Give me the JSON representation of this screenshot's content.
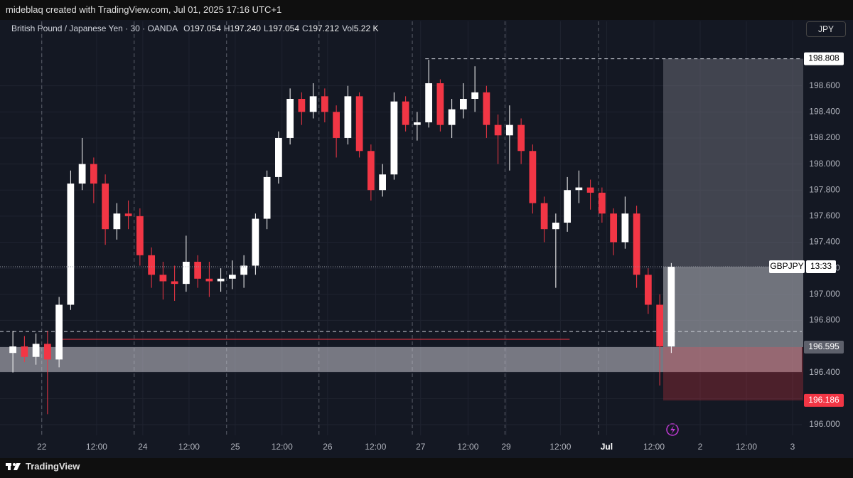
{
  "header": "mideblaq created with TradingView.com, Jul 01, 2025 17:16 UTC+1",
  "footer": "TradingView",
  "chart_data": {
    "type": "candlestick",
    "title": "British Pound / Japanese Yen · 30 · OANDA",
    "ohlc": [
      {
        "label": "O",
        "value": "197.054"
      },
      {
        "label": "H",
        "value": "197.240"
      },
      {
        "label": "L",
        "value": "197.054"
      },
      {
        "label": "C",
        "value": "197.212"
      },
      {
        "label": "Vol",
        "value": "5.22 K"
      }
    ],
    "currency": "JPY",
    "symbol_label": "GBPJPY",
    "countdown": "13:33",
    "up_color": "#ffffff",
    "down_color": "#f23645",
    "candles": [
      [
        196.55,
        196.72,
        196.4,
        196.6
      ],
      [
        196.6,
        196.68,
        196.48,
        196.52
      ],
      [
        196.52,
        196.7,
        196.46,
        196.62
      ],
      [
        196.62,
        196.72,
        196.08,
        196.5
      ],
      [
        196.5,
        196.98,
        196.44,
        196.92
      ],
      [
        196.92,
        197.95,
        196.88,
        197.85
      ],
      [
        197.85,
        198.2,
        197.8,
        198.0
      ],
      [
        198.0,
        198.05,
        197.7,
        197.85
      ],
      [
        197.85,
        197.92,
        197.38,
        197.5
      ],
      [
        197.5,
        197.7,
        197.42,
        197.62
      ],
      [
        197.62,
        197.72,
        197.5,
        197.6
      ],
      [
        197.6,
        197.66,
        197.22,
        197.3
      ],
      [
        197.3,
        197.36,
        197.05,
        197.15
      ],
      [
        197.15,
        197.25,
        196.96,
        197.1
      ],
      [
        197.1,
        197.22,
        196.95,
        197.08
      ],
      [
        197.08,
        197.45,
        197.02,
        197.25
      ],
      [
        197.25,
        197.3,
        197.05,
        197.12
      ],
      [
        197.12,
        197.25,
        196.98,
        197.1
      ],
      [
        197.1,
        197.2,
        197.02,
        197.12
      ],
      [
        197.12,
        197.26,
        197.04,
        197.15
      ],
      [
        197.15,
        197.3,
        197.05,
        197.22
      ],
      [
        197.22,
        197.62,
        197.15,
        197.58
      ],
      [
        197.58,
        197.95,
        197.5,
        197.9
      ],
      [
        197.9,
        198.25,
        197.85,
        198.2
      ],
      [
        198.2,
        198.58,
        198.15,
        198.5
      ],
      [
        198.5,
        198.55,
        198.3,
        198.4
      ],
      [
        198.4,
        198.62,
        198.35,
        198.52
      ],
      [
        198.52,
        198.58,
        198.32,
        198.4
      ],
      [
        198.4,
        198.45,
        198.05,
        198.2
      ],
      [
        198.2,
        198.6,
        198.15,
        198.52
      ],
      [
        198.52,
        198.55,
        198.05,
        198.1
      ],
      [
        198.1,
        198.15,
        197.72,
        197.8
      ],
      [
        197.8,
        198.0,
        197.75,
        197.92
      ],
      [
        197.92,
        198.55,
        197.88,
        198.48
      ],
      [
        198.48,
        198.52,
        198.25,
        198.3
      ],
      [
        198.3,
        198.4,
        198.18,
        198.32
      ],
      [
        198.32,
        198.8,
        198.28,
        198.62
      ],
      [
        198.62,
        198.65,
        198.25,
        198.3
      ],
      [
        198.3,
        198.5,
        198.2,
        198.42
      ],
      [
        198.42,
        198.62,
        198.35,
        198.5
      ],
      [
        198.5,
        198.75,
        198.4,
        198.55
      ],
      [
        198.55,
        198.6,
        198.2,
        198.3
      ],
      [
        198.3,
        198.38,
        198.0,
        198.22
      ],
      [
        198.22,
        198.45,
        197.95,
        198.3
      ],
      [
        198.3,
        198.35,
        198.0,
        198.1
      ],
      [
        198.1,
        198.15,
        197.62,
        197.7
      ],
      [
        197.7,
        197.75,
        197.4,
        197.5
      ],
      [
        197.5,
        197.62,
        197.05,
        197.55
      ],
      [
        197.55,
        197.9,
        197.48,
        197.8
      ],
      [
        197.8,
        197.95,
        197.7,
        197.82
      ],
      [
        197.82,
        197.88,
        197.65,
        197.78
      ],
      [
        197.78,
        197.82,
        197.55,
        197.62
      ],
      [
        197.62,
        197.66,
        197.3,
        197.4
      ],
      [
        197.4,
        197.75,
        197.35,
        197.62
      ],
      [
        197.62,
        197.68,
        197.05,
        197.15
      ],
      [
        197.15,
        197.2,
        196.85,
        196.92
      ],
      [
        196.92,
        197.0,
        196.3,
        196.6
      ],
      [
        196.6,
        197.24,
        196.55,
        197.212
      ]
    ],
    "xlim": [
      -0.615,
      68.8
    ],
    "ylim": [
      195.918,
      199.095
    ],
    "xticks": [
      {
        "value": 3,
        "label": "22"
      },
      {
        "value": 7.75,
        "label": "12:00"
      },
      {
        "value": 11.75,
        "label": "24"
      },
      {
        "value": 15.75,
        "label": "12:00"
      },
      {
        "value": 19.75,
        "label": "25"
      },
      {
        "value": 23.8,
        "label": "12:00"
      },
      {
        "value": 27.75,
        "label": "26"
      },
      {
        "value": 31.9,
        "label": "12:00"
      },
      {
        "value": 35.8,
        "label": "27"
      },
      {
        "value": 39.9,
        "label": "12:00"
      },
      {
        "value": 43.2,
        "label": "29"
      },
      {
        "value": 47.9,
        "label": "12:00"
      },
      {
        "value": 51.9,
        "label": "Jul"
      },
      {
        "value": 56,
        "label": "12:00"
      },
      {
        "value": 60,
        "label": "2"
      },
      {
        "value": 64,
        "label": "12:00"
      },
      {
        "value": 68,
        "label": "3"
      }
    ],
    "xgrid_dashed": [
      3,
      11,
      19,
      27,
      35.08,
      43.1,
      51.2
    ],
    "yticks": [
      {
        "value": 196,
        "label": "196.000"
      },
      {
        "value": 196.2,
        "label": "196.200"
      },
      {
        "value": 196.4,
        "label": "196.400"
      },
      {
        "value": 196.6,
        "label": "196.600"
      },
      {
        "value": 196.8,
        "label": "196.800"
      },
      {
        "value": 197,
        "label": "197.000"
      },
      {
        "value": 197.2,
        "label": "197.200"
      },
      {
        "value": 197.4,
        "label": "197.400"
      },
      {
        "value": 197.6,
        "label": "197.600"
      },
      {
        "value": 197.8,
        "label": "197.800"
      },
      {
        "value": 198,
        "label": "198.000"
      },
      {
        "value": 198.2,
        "label": "198.200"
      },
      {
        "value": 198.4,
        "label": "198.400"
      },
      {
        "value": 198.6,
        "label": "198.600"
      }
    ],
    "grid": true,
    "zone": [
      196.404,
      196.595
    ],
    "support_line": {
      "price": 196.655,
      "from": 4.4,
      "to": 48.7
    },
    "dashed_level": 196.715,
    "target_line": {
      "price": 198.808,
      "from": 36.2
    },
    "position": {
      "start": 56.8,
      "target": 198.808,
      "entry": 196.595,
      "stop": 196.186
    }
  }
}
